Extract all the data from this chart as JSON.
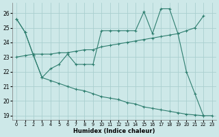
{
  "xlabel": "Humidex (Indice chaleur)",
  "bg_color": "#cde8e8",
  "grid_color": "#aacfcf",
  "line_color": "#2d7d6e",
  "xlim": [
    -0.5,
    23.5
  ],
  "ylim": [
    18.7,
    26.7
  ],
  "yticks": [
    19,
    20,
    21,
    22,
    23,
    24,
    25,
    26
  ],
  "xticks": [
    0,
    1,
    2,
    3,
    4,
    5,
    6,
    7,
    8,
    9,
    10,
    11,
    12,
    13,
    14,
    15,
    16,
    17,
    18,
    19,
    20,
    21,
    22,
    23
  ],
  "series": [
    {
      "x": [
        0,
        1,
        2,
        3,
        4,
        5,
        6,
        7,
        8,
        9,
        10,
        11,
        12,
        13,
        14,
        15,
        16,
        17,
        18,
        19,
        20,
        21,
        22
      ],
      "y": [
        25.6,
        24.7,
        23.1,
        21.6,
        22.2,
        22.5,
        23.2,
        22.5,
        22.5,
        22.5,
        24.8,
        24.8,
        24.8,
        24.8,
        24.8,
        26.1,
        24.6,
        26.3,
        26.3,
        24.6,
        22.0,
        20.5,
        19.0
      ]
    },
    {
      "x": [
        0,
        1,
        2,
        3,
        4,
        5,
        6,
        7,
        8,
        9,
        10,
        11,
        12,
        13,
        14,
        15,
        16,
        17,
        18,
        19,
        20,
        21,
        22
      ],
      "y": [
        23.0,
        23.1,
        23.2,
        23.2,
        23.2,
        23.3,
        23.3,
        23.4,
        23.5,
        23.5,
        23.7,
        23.8,
        23.9,
        24.0,
        24.1,
        24.2,
        24.3,
        24.4,
        24.5,
        24.6,
        24.8,
        25.0,
        25.8
      ]
    },
    {
      "x": [
        0,
        1,
        2,
        3,
        4,
        5,
        6,
        7,
        8,
        9,
        10,
        11,
        12,
        13,
        14,
        15,
        16,
        17,
        18,
        19,
        20,
        21,
        22,
        23
      ],
      "y": [
        25.6,
        24.7,
        23.1,
        21.6,
        21.4,
        21.2,
        21.0,
        20.8,
        20.7,
        20.5,
        20.3,
        20.2,
        20.1,
        19.9,
        19.8,
        19.6,
        19.5,
        19.4,
        19.3,
        19.2,
        19.1,
        19.05,
        19.0,
        19.0
      ]
    }
  ]
}
